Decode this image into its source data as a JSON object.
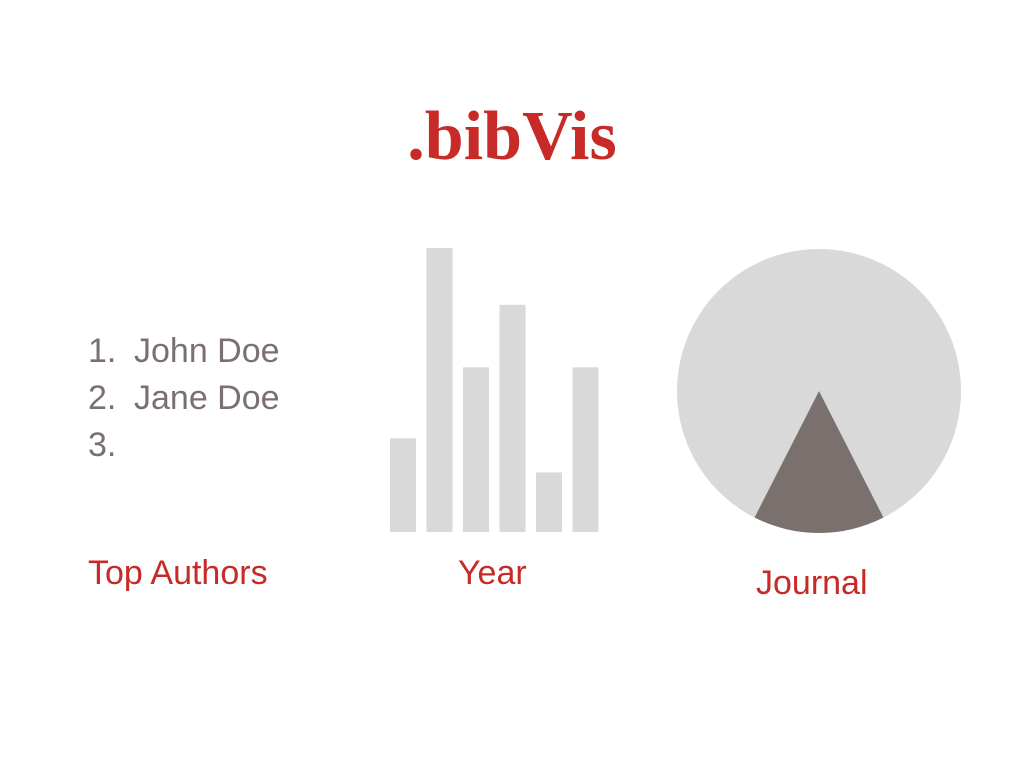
{
  "app": {
    "title": ".bibVis"
  },
  "authors": {
    "caption": "Top Authors",
    "items": [
      {
        "rank": "1.",
        "name": "John Doe"
      },
      {
        "rank": "2.",
        "name": "Jane Doe"
      },
      {
        "rank": "3.",
        "name": ""
      }
    ]
  },
  "year": {
    "caption": "Year"
  },
  "journal": {
    "caption": "Journal"
  },
  "colors": {
    "accent": "#c72a27",
    "text_gray": "#7a716f",
    "placeholder_gray": "#d9d9d9",
    "highlight_slice": "#7a716f"
  },
  "chart_data": [
    {
      "type": "bar",
      "title": "",
      "xlabel": "Year",
      "ylabel": "",
      "categories": [
        "",
        "",
        "",
        "",
        "",
        ""
      ],
      "values": [
        33,
        100,
        58,
        80,
        21,
        58
      ],
      "ylim": [
        0,
        100
      ],
      "grid": false,
      "color": "#d9d9d9"
    },
    {
      "type": "pie",
      "title": "",
      "xlabel": "Journal",
      "slices": [
        {
          "name": "",
          "value": 85,
          "color": "#d9d9d9"
        },
        {
          "name": "",
          "value": 15,
          "color": "#7a716f"
        }
      ]
    }
  ]
}
